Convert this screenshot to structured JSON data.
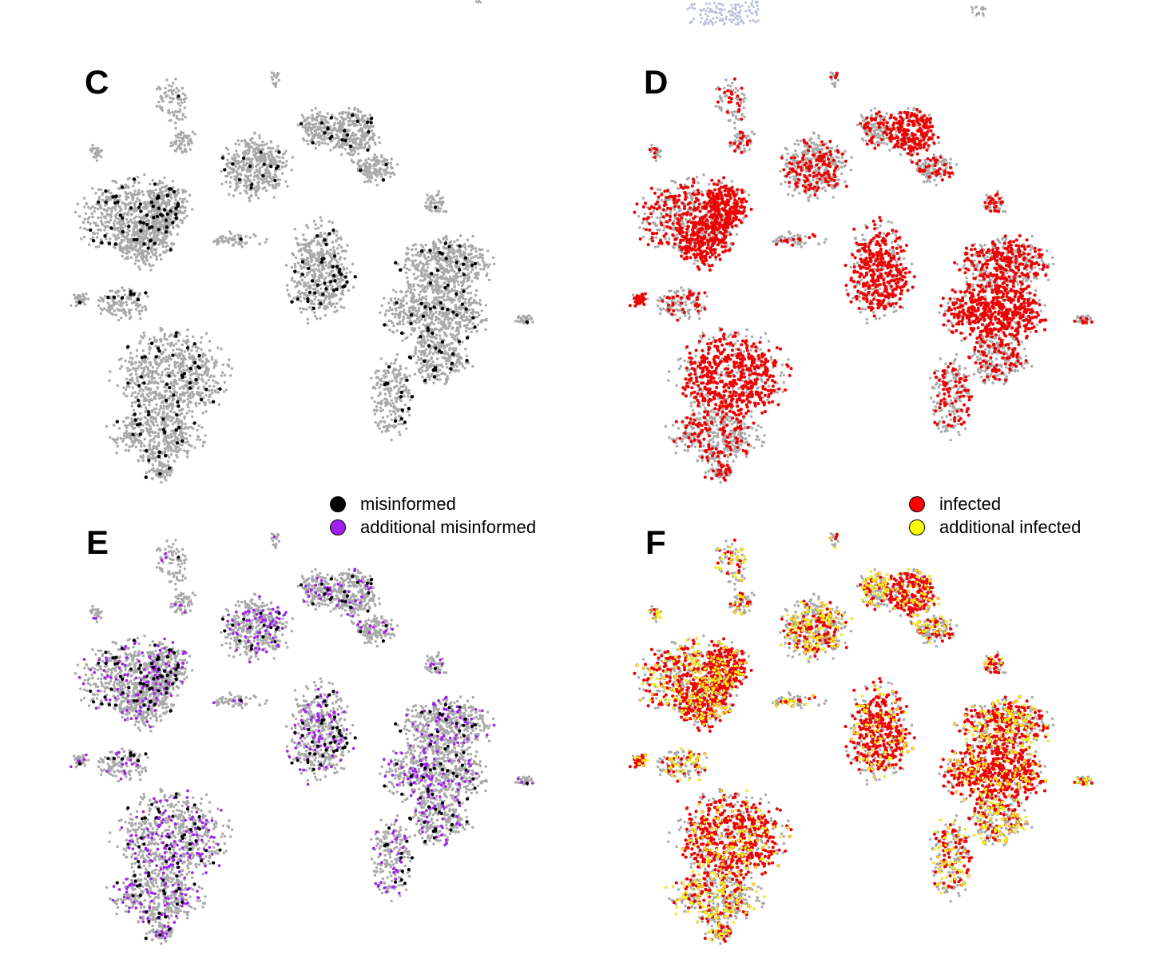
{
  "panels": [
    {
      "letter": "C",
      "layers": [
        "base",
        "misinformed"
      ]
    },
    {
      "letter": "D",
      "layers": [
        "base",
        "infected"
      ]
    },
    {
      "letter": "E",
      "layers": [
        "base",
        "additional_misinformed",
        "misinformed"
      ]
    },
    {
      "letter": "F",
      "layers": [
        "base",
        "infected",
        "additional_infected"
      ]
    }
  ],
  "legends": {
    "misinformation": [
      {
        "label": "misinformed",
        "color": "#000000"
      },
      {
        "label": "additional misinformed",
        "color": "#a020f0"
      }
    ],
    "infection": [
      {
        "label": "infected",
        "color": "#ff0000"
      },
      {
        "label": "additional infected",
        "color": "#ffff00"
      }
    ]
  },
  "colors": {
    "base": "#a9a9a9",
    "misinformed": "#000000",
    "additional_misinformed": "#a020f0",
    "infected": "#ee0000",
    "additional_infected": "#f2ef10",
    "top_fragment": "#b9bfdc"
  }
}
